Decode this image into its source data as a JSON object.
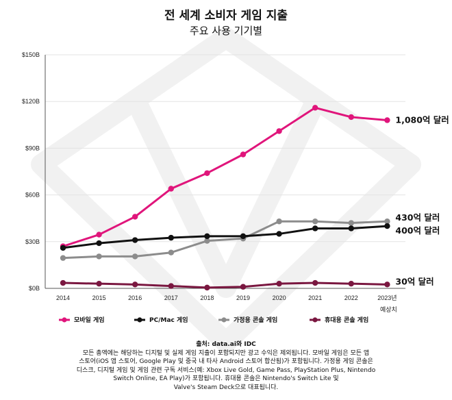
{
  "chart_data": {
    "type": "line",
    "title": "전 세계 소비자 게임 지출",
    "subtitle": "주요 사용 기기별",
    "categories": [
      "2014",
      "2015",
      "2016",
      "2017",
      "2018",
      "2019",
      "2020",
      "2021",
      "2022",
      "2023년"
    ],
    "category_note": "예상치",
    "y_ticks": [
      "$0B",
      "$30B",
      "$60B",
      "$90B",
      "$120B",
      "$150B"
    ],
    "ylim": [
      0,
      150
    ],
    "grid": "horizontal",
    "legend_position": "bottom",
    "series": [
      {
        "name": "모바일 게임",
        "color": "#e0157b",
        "values": [
          27,
          34.5,
          46,
          64,
          74,
          86,
          101,
          116,
          110,
          108
        ],
        "end_label": "1,080억 달러"
      },
      {
        "name": "가정용 콘솔 게임",
        "color": "#8c8c8c",
        "values": [
          19.5,
          20.5,
          20.5,
          23,
          30.5,
          32,
          43,
          43,
          42,
          43
        ],
        "end_label": "430억 달러"
      },
      {
        "name": "PC/Mac 게임",
        "color": "#111111",
        "values": [
          26,
          29,
          31,
          32.5,
          33.5,
          33.5,
          35,
          38.5,
          38.5,
          40
        ],
        "end_label": "400억 달러"
      },
      {
        "name": "휴대용 콘솔 게임",
        "color": "#7a1740",
        "values": [
          3.5,
          3,
          2.5,
          1.5,
          0.5,
          1,
          3,
          3.5,
          3,
          2.5
        ],
        "end_label": "30억 달러"
      }
    ],
    "legend_order": [
      0,
      2,
      1,
      3
    ]
  },
  "footer": {
    "source": "출처: data.ai와 IDC",
    "lines": [
      "모든 총액에는 해당하는 디지털 및 실제 게임 지출이 포함되지만 광고 수익은 제외됩니다. 모바일 게임은 모든 앱",
      "스토어(iOS 앱 스토어, Google Play 및 중국 내 타사 Android 스토어 합산됨)가 포함됩니다. 가정용 게임 콘솔은",
      "디스크, 디지털 게임 및 게임 관련 구독 서비스(예: Xbox Live Gold, Game Pass, PlayStation Plus, Nintendo",
      "Switch Online, EA Play)가 포함됩니다. 휴대용 콘솔은 Nintendo's Switch Lite 및",
      "Valve's Steam Deck으로 대표됩니다."
    ]
  }
}
